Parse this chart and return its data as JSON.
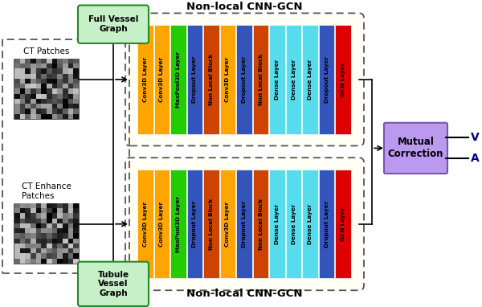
{
  "top_label": "Non-local CNN-GCN",
  "bottom_label": "Non-local CNN-GCN",
  "layers": [
    {
      "name": "Conv3D Layer",
      "color": "#FFA500"
    },
    {
      "name": "Conv3D Layer",
      "color": "#FFA500"
    },
    {
      "name": "MaxPool3D Layer",
      "color": "#22CC00"
    },
    {
      "name": "Dropout Layer",
      "color": "#3355BB"
    },
    {
      "name": "Non Local Block",
      "color": "#CC4400"
    },
    {
      "name": "Conv3D Layer",
      "color": "#FFA500"
    },
    {
      "name": "Dropout Layer",
      "color": "#3355BB"
    },
    {
      "name": "Non Local Block",
      "color": "#CC4400"
    },
    {
      "name": "Dense Layer",
      "color": "#55DDEE"
    },
    {
      "name": "Dense Layer",
      "color": "#55DDEE"
    },
    {
      "name": "Dense Layer",
      "color": "#55DDEE"
    },
    {
      "name": "Dropout Layer",
      "color": "#3355BB"
    },
    {
      "name": "GCN Layer",
      "color": "#DD0000"
    }
  ],
  "top_graph_label": "Full Vessel\nGraph",
  "bottom_graph_label": "Tubule\nVessel\nGraph",
  "top_input_label": "CT Patches",
  "bottom_input_label": "CT Enhance\nPatches",
  "mutual_label": "Mutual\nCorrection",
  "output_v": "V",
  "output_a": "A",
  "bg_color": "#FFFFFF",
  "graph_box_fill": "#C8F0C8",
  "graph_box_edge": "#228B22",
  "mutual_fill": "#BB99EE",
  "mutual_edge": "#7755AA",
  "dashed_outer_fill": "#FFFFFF",
  "bar_text_size": 5.2,
  "label_text_size": 9.5
}
